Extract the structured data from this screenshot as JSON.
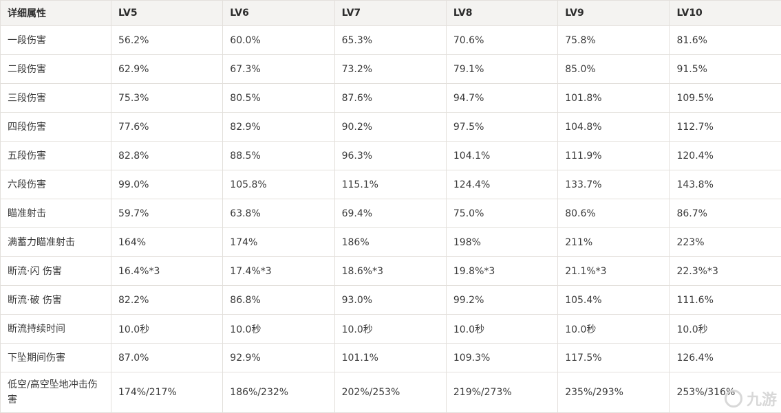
{
  "table": {
    "headers": [
      "详细属性",
      "LV5",
      "LV6",
      "LV7",
      "LV8",
      "LV9",
      "LV10"
    ],
    "rows": [
      {
        "label": "一段伤害",
        "values": [
          "56.2%",
          "60.0%",
          "65.3%",
          "70.6%",
          "75.8%",
          "81.6%"
        ]
      },
      {
        "label": "二段伤害",
        "values": [
          "62.9%",
          "67.3%",
          "73.2%",
          "79.1%",
          "85.0%",
          "91.5%"
        ]
      },
      {
        "label": "三段伤害",
        "values": [
          "75.3%",
          "80.5%",
          "87.6%",
          "94.7%",
          "101.8%",
          "109.5%"
        ]
      },
      {
        "label": "四段伤害",
        "values": [
          "77.6%",
          "82.9%",
          "90.2%",
          "97.5%",
          "104.8%",
          "112.7%"
        ]
      },
      {
        "label": "五段伤害",
        "values": [
          "82.8%",
          "88.5%",
          "96.3%",
          "104.1%",
          "111.9%",
          "120.4%"
        ]
      },
      {
        "label": "六段伤害",
        "values": [
          "99.0%",
          "105.8%",
          "115.1%",
          "124.4%",
          "133.7%",
          "143.8%"
        ]
      },
      {
        "label": "瞄准射击",
        "values": [
          "59.7%",
          "63.8%",
          "69.4%",
          "75.0%",
          "80.6%",
          "86.7%"
        ]
      },
      {
        "label": "满蓄力瞄准射击",
        "values": [
          "164%",
          "174%",
          "186%",
          "198%",
          "211%",
          "223%"
        ]
      },
      {
        "label": "断流·闪 伤害",
        "values": [
          "16.4%*3",
          "17.4%*3",
          "18.6%*3",
          "19.8%*3",
          "21.1%*3",
          "22.3%*3"
        ]
      },
      {
        "label": "断流·破 伤害",
        "values": [
          "82.2%",
          "86.8%",
          "93.0%",
          "99.2%",
          "105.4%",
          "111.6%"
        ]
      },
      {
        "label": "断流持续时间",
        "values": [
          "10.0秒",
          "10.0秒",
          "10.0秒",
          "10.0秒",
          "10.0秒",
          "10.0秒"
        ]
      },
      {
        "label": "下坠期间伤害",
        "values": [
          "87.0%",
          "92.9%",
          "101.1%",
          "109.3%",
          "117.5%",
          "126.4%"
        ]
      },
      {
        "label": "低空/高空坠地冲击伤害",
        "values": [
          "174%/217%",
          "186%/232%",
          "202%/253%",
          "219%/273%",
          "235%/293%",
          "253%/316%"
        ]
      }
    ]
  },
  "watermark": {
    "text": "九游",
    "icon": "jiuyou-logo-icon"
  }
}
